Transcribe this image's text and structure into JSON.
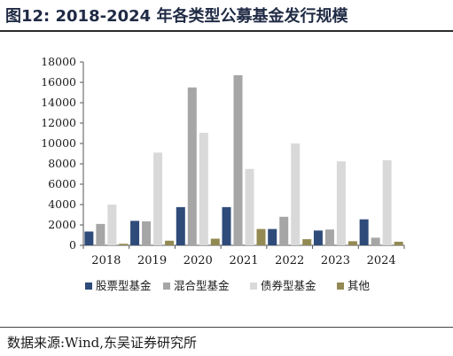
{
  "figure": {
    "title": "图12:  2018-2024 年各类型公募基金发行规模",
    "source": "数据来源:Wind,东吴证券研究所"
  },
  "chart_data": {
    "type": "bar",
    "title": "",
    "xlabel": "",
    "ylabel": "",
    "categories": [
      "2018",
      "2019",
      "2020",
      "2021",
      "2022",
      "2023",
      "2024"
    ],
    "ylim": [
      0,
      18000
    ],
    "yticks": [
      0,
      2000,
      4000,
      6000,
      8000,
      10000,
      12000,
      14000,
      16000,
      18000
    ],
    "grid": false,
    "legend_position": "bottom",
    "series": [
      {
        "name": "股票型基金",
        "color": "#2e4b7a",
        "values": [
          1350,
          2400,
          3750,
          3750,
          1600,
          1450,
          2550
        ]
      },
      {
        "name": "混合型基金",
        "color": "#a6a6a6",
        "values": [
          2100,
          2350,
          15500,
          16700,
          2800,
          1550,
          750
        ]
      },
      {
        "name": "债券型基金",
        "color": "#d9d9d9",
        "values": [
          4000,
          9100,
          11050,
          7500,
          10000,
          8250,
          8350
        ]
      },
      {
        "name": "其他",
        "color": "#938953",
        "values": [
          150,
          450,
          650,
          1600,
          600,
          400,
          350
        ]
      }
    ]
  }
}
